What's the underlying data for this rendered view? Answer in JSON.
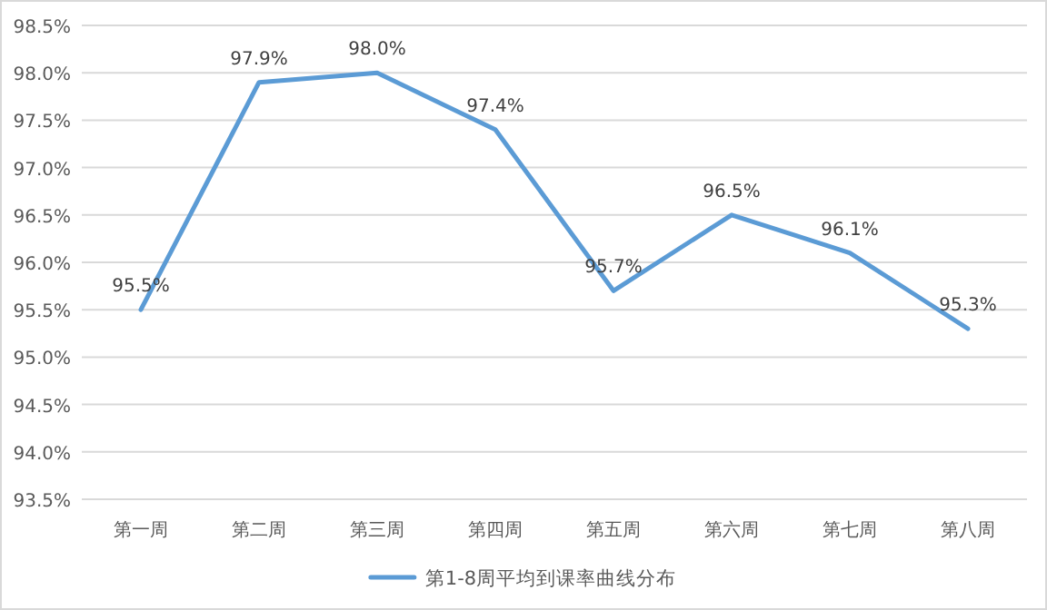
{
  "chart_data": {
    "type": "line",
    "categories": [
      "第一周",
      "第二周",
      "第三周",
      "第四周",
      "第五周",
      "第六周",
      "第七周",
      "第八周"
    ],
    "series": [
      {
        "name": "第1-8周平均到课率曲线分布",
        "color": "#5b9bd5",
        "values": [
          95.5,
          97.9,
          98.0,
          97.4,
          95.7,
          96.5,
          96.1,
          95.3
        ],
        "value_labels": [
          "95.5%",
          "97.9%",
          "98.0%",
          "97.4%",
          "95.7%",
          "96.5%",
          "96.1%",
          "95.3%"
        ]
      }
    ],
    "ylim": [
      93.5,
      98.5
    ],
    "yticks": [
      {
        "value": 93.5,
        "label": "93.5%"
      },
      {
        "value": 94.0,
        "label": "94.0%"
      },
      {
        "value": 94.5,
        "label": "94.5%"
      },
      {
        "value": 95.0,
        "label": "95.0%"
      },
      {
        "value": 95.5,
        "label": "95.5%"
      },
      {
        "value": 96.0,
        "label": "96.0%"
      },
      {
        "value": 96.5,
        "label": "96.5%"
      },
      {
        "value": 97.0,
        "label": "97.0%"
      },
      {
        "value": 97.5,
        "label": "97.5%"
      },
      {
        "value": 98.0,
        "label": "98.0%"
      },
      {
        "value": 98.5,
        "label": "98.5%"
      }
    ],
    "grid": "y",
    "legend": "bottom",
    "marker": "none",
    "line_style": "solid"
  }
}
